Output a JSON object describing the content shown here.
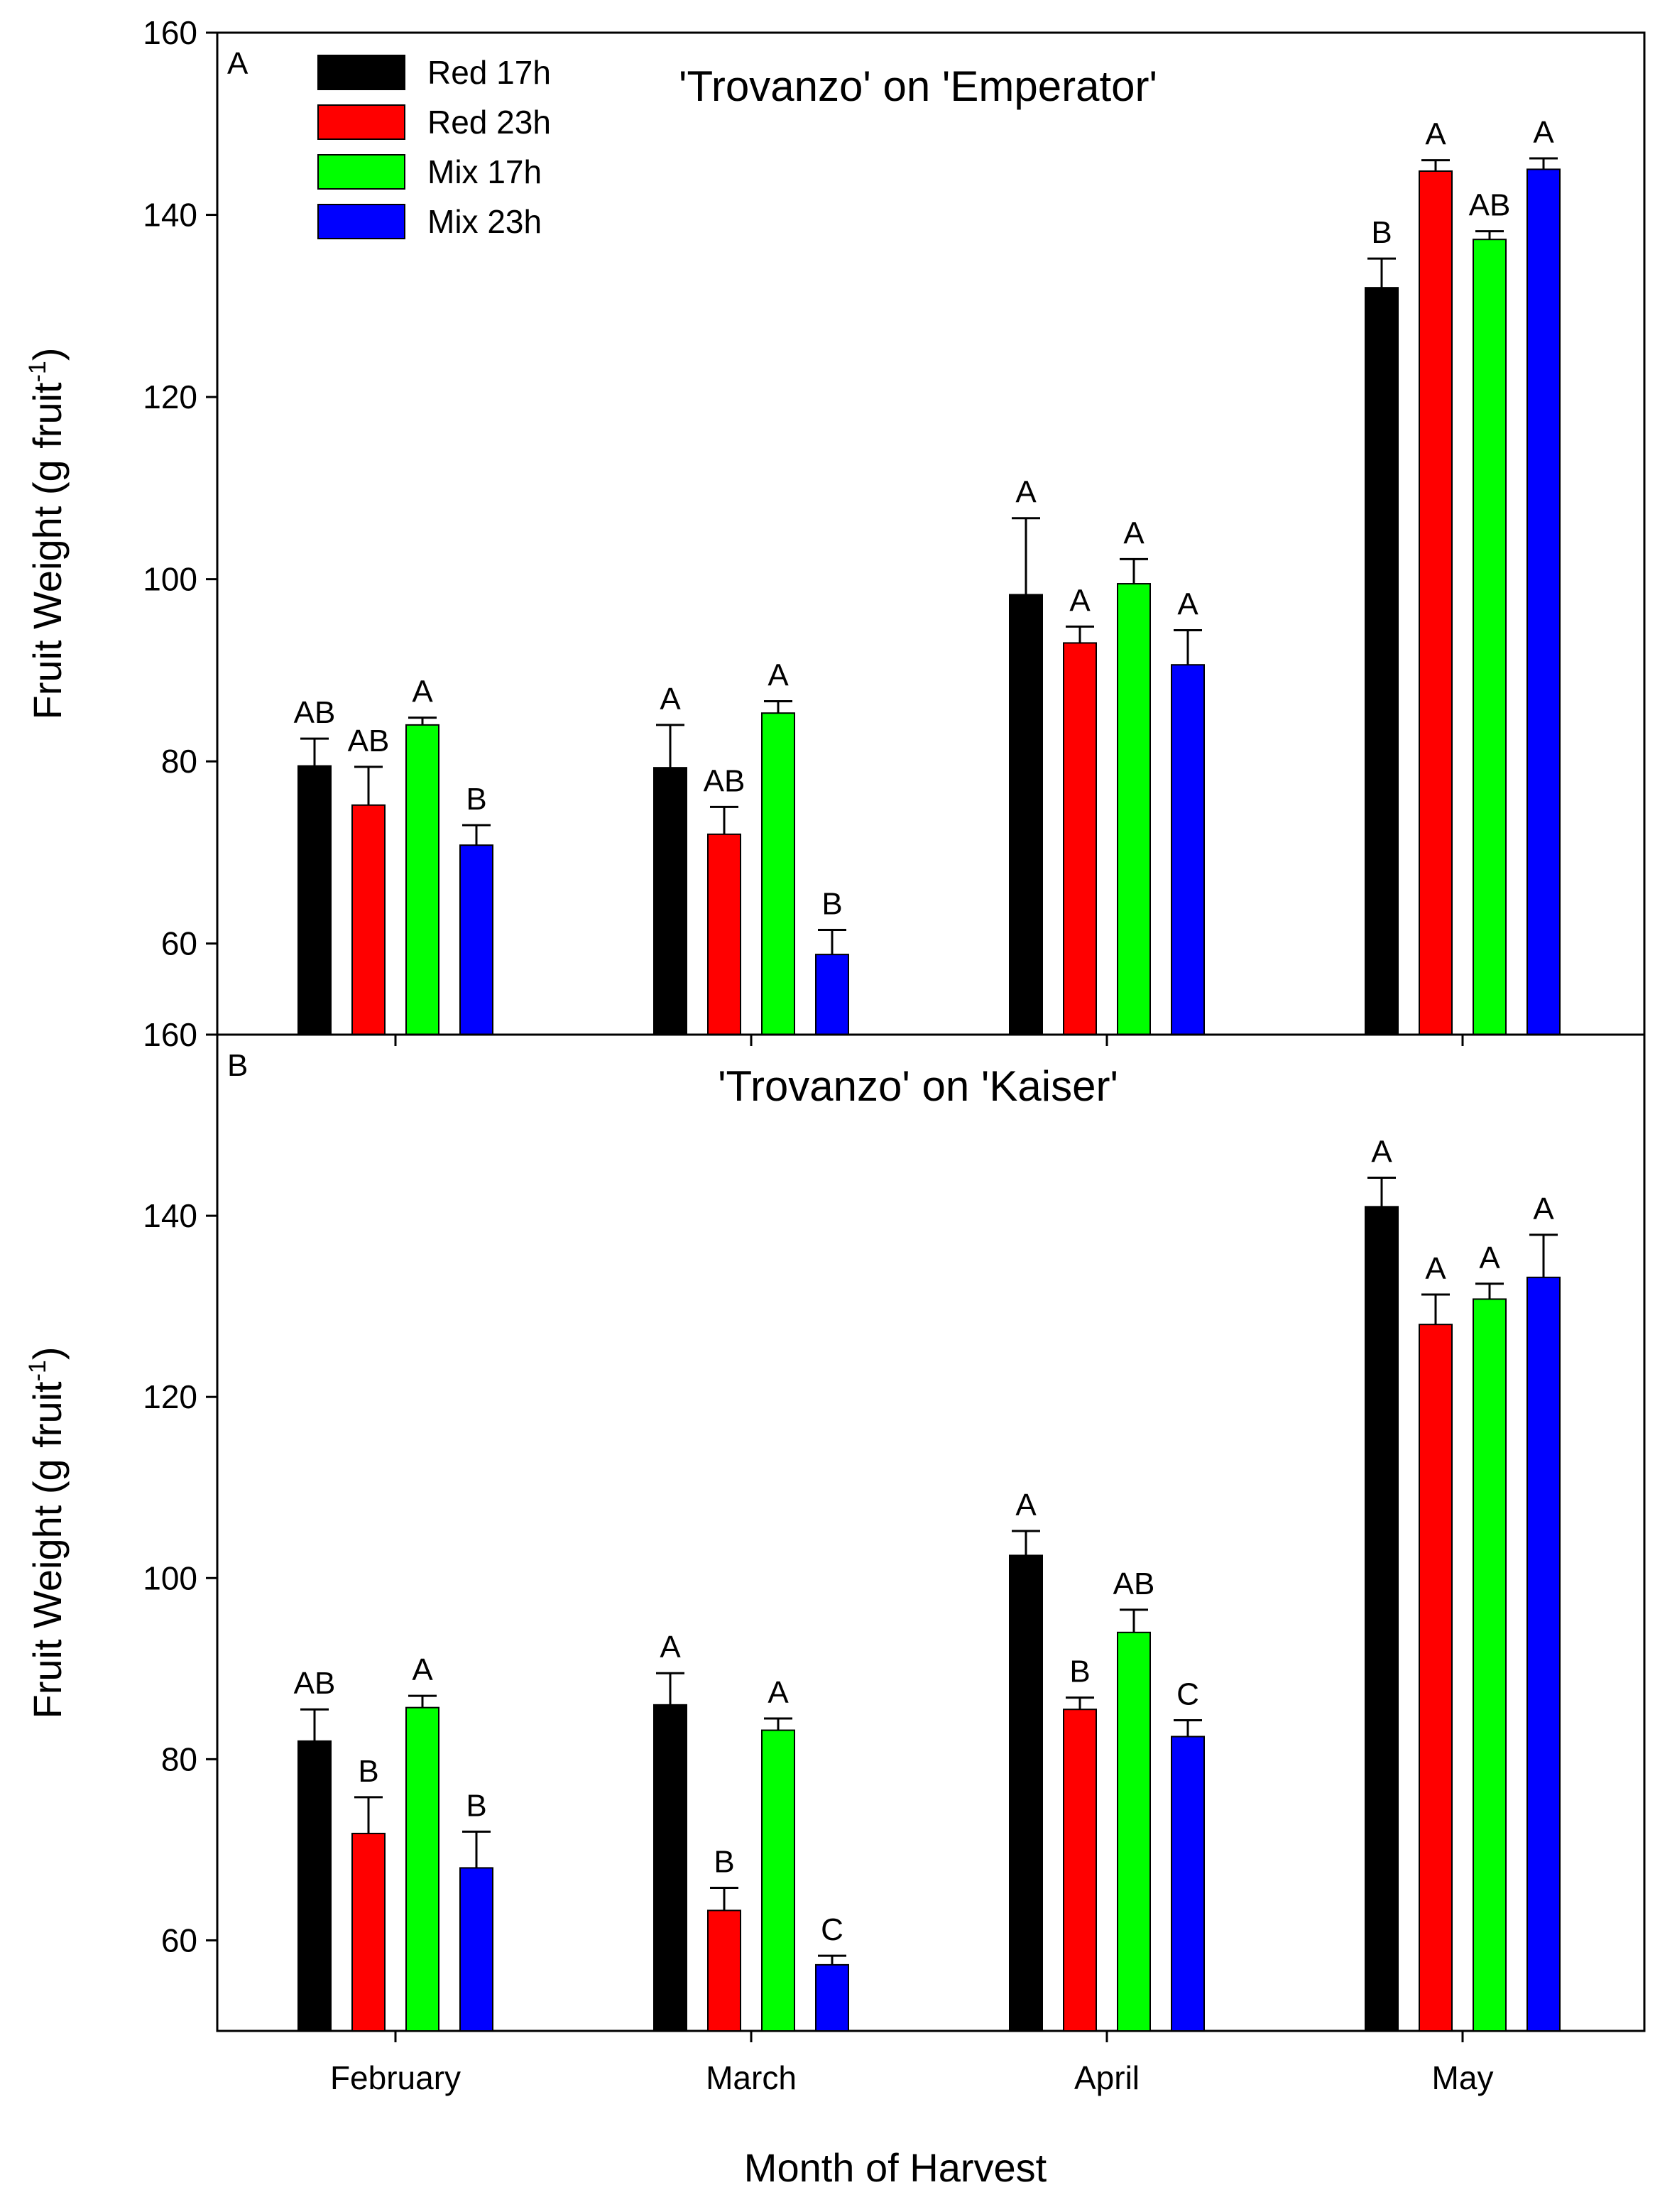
{
  "chart_data": [
    {
      "type": "bar",
      "panel_label": "A",
      "title": "'Trovanzo' on 'Emperator'",
      "ylabel": "Fruit Weight (g fruit-1)",
      "xlabel": "",
      "ylim": [
        50,
        160
      ],
      "yticks": [
        60,
        80,
        100,
        120,
        140,
        160
      ],
      "categories": [
        "February",
        "March",
        "April",
        "May"
      ],
      "series": [
        {
          "name": "Red 17h",
          "color": "#000000",
          "values": [
            79.5,
            79.3,
            98.3,
            132.0
          ],
          "errors": [
            3.0,
            4.7,
            8.4,
            3.2
          ],
          "letters": [
            "AB",
            "A",
            "A",
            "B"
          ]
        },
        {
          "name": "Red 23h",
          "color": "#ff0000",
          "values": [
            75.2,
            72.0,
            93.0,
            144.8
          ],
          "errors": [
            4.2,
            3.0,
            1.8,
            1.2
          ],
          "letters": [
            "AB",
            "AB",
            "A",
            "A"
          ]
        },
        {
          "name": "Mix 17h",
          "color": "#00ff00",
          "values": [
            84.0,
            85.3,
            99.5,
            137.3
          ],
          "errors": [
            0.8,
            1.3,
            2.7,
            0.9
          ],
          "letters": [
            "A",
            "A",
            "A",
            "AB"
          ]
        },
        {
          "name": "Mix 23h",
          "color": "#0000ff",
          "values": [
            70.8,
            58.8,
            90.6,
            145.0
          ],
          "errors": [
            2.2,
            2.7,
            3.8,
            1.2
          ],
          "letters": [
            "B",
            "B",
            "A",
            "A"
          ]
        }
      ]
    },
    {
      "type": "bar",
      "panel_label": "B",
      "title": "'Trovanzo' on 'Kaiser'",
      "ylabel": "Fruit Weight (g fruit-1)",
      "xlabel": "Month of Harvest",
      "ylim": [
        50,
        160
      ],
      "yticks": [
        60,
        80,
        100,
        120,
        140,
        160
      ],
      "categories": [
        "February",
        "March",
        "April",
        "May"
      ],
      "series": [
        {
          "name": "Red 17h",
          "color": "#000000",
          "values": [
            82.0,
            86.0,
            102.5,
            141.0
          ],
          "errors": [
            3.5,
            3.5,
            2.7,
            3.2
          ],
          "letters": [
            "AB",
            "A",
            "A",
            "A"
          ]
        },
        {
          "name": "Red 23h",
          "color": "#ff0000",
          "values": [
            71.8,
            63.3,
            85.5,
            128.0
          ],
          "errors": [
            4.0,
            2.5,
            1.3,
            3.3
          ],
          "letters": [
            "B",
            "B",
            "B",
            "A"
          ]
        },
        {
          "name": "Mix 17h",
          "color": "#00ff00",
          "values": [
            85.7,
            83.2,
            94.0,
            130.8
          ],
          "errors": [
            1.3,
            1.3,
            2.5,
            1.7
          ],
          "letters": [
            "A",
            "A",
            "AB",
            "A"
          ]
        },
        {
          "name": "Mix 23h",
          "color": "#0000ff",
          "values": [
            68.0,
            57.3,
            82.5,
            133.2
          ],
          "errors": [
            4.0,
            1.0,
            1.8,
            4.7
          ],
          "letters": [
            "B",
            "C",
            "C",
            "A"
          ]
        }
      ]
    }
  ],
  "legend": {
    "entries": [
      "Red 17h",
      "Red 23h",
      "Mix 17h",
      "Mix 23h"
    ],
    "placement": "top-left"
  }
}
